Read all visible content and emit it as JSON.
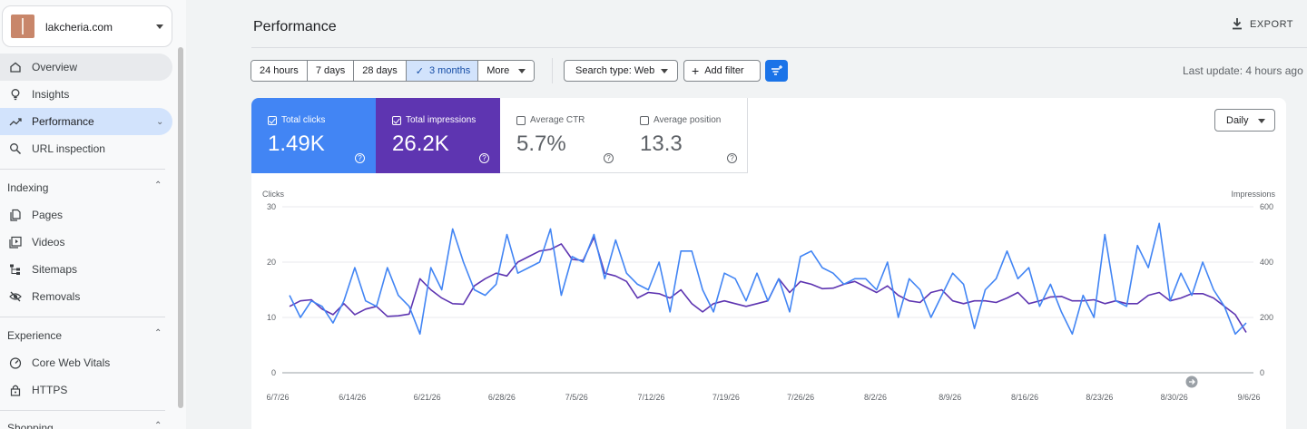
{
  "sidebar": {
    "property_name": "lakcheria.com",
    "items": [
      {
        "label": "Overview",
        "icon": "home-icon"
      },
      {
        "label": "Insights",
        "icon": "lightbulb-icon"
      },
      {
        "label": "Performance",
        "icon": "trending-icon"
      },
      {
        "label": "URL inspection",
        "icon": "search-icon"
      }
    ],
    "sections": [
      {
        "title": "Indexing",
        "items": [
          {
            "label": "Pages",
            "icon": "pages-icon"
          },
          {
            "label": "Videos",
            "icon": "video-icon"
          },
          {
            "label": "Sitemaps",
            "icon": "sitemap-icon"
          },
          {
            "label": "Removals",
            "icon": "eye-off-icon"
          }
        ]
      },
      {
        "title": "Experience",
        "items": [
          {
            "label": "Core Web Vitals",
            "icon": "gauge-icon"
          },
          {
            "label": "HTTPS",
            "icon": "lock-icon"
          }
        ]
      },
      {
        "title": "Shopping",
        "items": []
      }
    ]
  },
  "header": {
    "title": "Performance",
    "export_label": "EXPORT"
  },
  "filters": {
    "ranges": [
      "24 hours",
      "7 days",
      "28 days",
      "3 months",
      "More"
    ],
    "selected_range": "3 months",
    "search_type": "Search type: Web",
    "add_filter": "Add filter",
    "last_update": "Last update: 4 hours ago"
  },
  "metrics": [
    {
      "label": "Total clicks",
      "value": "1.49K",
      "checked": true,
      "color": "#4285f4"
    },
    {
      "label": "Total impressions",
      "value": "26.2K",
      "checked": true,
      "color": "#5e35b1"
    },
    {
      "label": "Average CTR",
      "value": "5.7%",
      "checked": false
    },
    {
      "label": "Average position",
      "value": "13.3",
      "checked": false
    }
  ],
  "granularity": "Daily",
  "chart_data": {
    "type": "line",
    "left_axis_label": "Clicks",
    "right_axis_label": "Impressions",
    "left_ticks": [
      "30",
      "20",
      "10",
      "0"
    ],
    "right_ticks": [
      "600",
      "400",
      "200",
      "0"
    ],
    "ylim_left": [
      0,
      30
    ],
    "ylim_right": [
      0,
      600
    ],
    "x_tick_labels": [
      "6/7/26",
      "6/14/26",
      "6/21/26",
      "6/28/26",
      "7/5/26",
      "7/12/26",
      "7/19/26",
      "7/26/26",
      "8/2/26",
      "8/9/26",
      "8/16/26",
      "8/23/26",
      "8/30/26",
      "9/6/26"
    ],
    "series": [
      {
        "name": "Clicks",
        "axis": "left",
        "color": "#4285f4",
        "values": [
          14,
          10,
          13,
          12,
          9,
          13,
          19,
          13,
          12,
          19,
          14,
          12,
          7,
          19,
          15,
          26,
          20,
          15,
          14,
          16,
          25,
          18,
          19,
          20,
          26,
          14,
          21,
          20,
          25,
          17,
          24,
          18,
          16,
          15,
          20,
          11,
          22,
          22,
          15,
          11,
          18,
          17,
          13,
          18,
          13,
          17,
          11,
          21,
          22,
          19,
          18,
          16,
          17,
          17,
          15,
          20,
          10,
          17,
          15,
          10,
          14,
          18,
          16,
          8,
          15,
          17,
          22,
          17,
          19,
          12,
          16,
          11,
          7,
          14,
          10,
          25,
          13,
          12,
          23,
          19,
          27,
          13,
          18,
          14,
          20,
          15,
          12,
          7,
          9
        ]
      },
      {
        "name": "Impressions",
        "axis": "left",
        "color": "#5e35b1",
        "values": [
          12,
          13,
          13.2,
          11.5,
          10.5,
          12.5,
          10.5,
          11.5,
          12,
          10.2,
          10.3,
          10.6,
          17,
          15,
          13.5,
          12.5,
          12.4,
          15.7,
          17,
          18,
          17.5,
          20,
          21,
          22,
          22.3,
          23.3,
          20.5,
          20.3,
          24.5,
          18,
          17.5,
          16.5,
          13.5,
          14.5,
          14.3,
          13.5,
          15,
          12.5,
          11,
          12.5,
          13,
          12.5,
          12,
          12.5,
          13,
          17,
          14.5,
          16.5,
          16,
          15.2,
          15.3,
          16,
          16.5,
          15.5,
          14.5,
          15.7,
          14,
          13,
          12.7,
          14.5,
          15,
          13,
          12.5,
          13,
          13,
          12.7,
          13.5,
          14.5,
          12.5,
          13,
          13.7,
          13.8,
          13,
          13,
          13.2,
          12.5,
          13,
          12.5,
          12.5,
          14,
          14.5,
          13,
          13.5,
          14.3,
          14.3,
          13.5,
          12,
          10.5,
          7.3
        ]
      }
    ]
  }
}
